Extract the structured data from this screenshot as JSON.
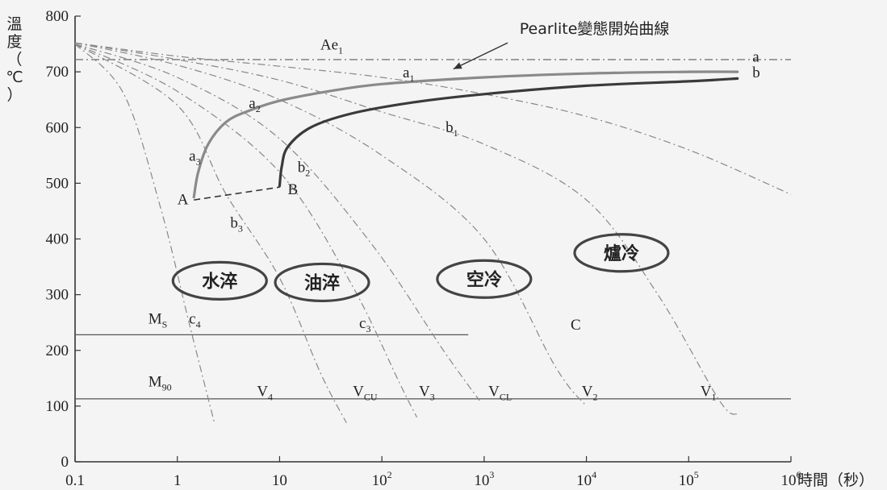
{
  "chart_data": {
    "type": "line",
    "xlabel": "時間（秒）",
    "ylabel_chars": [
      "溫",
      "度",
      "（",
      "℃",
      "）"
    ],
    "x_scale": "log",
    "xlim": [
      0.1,
      1000000
    ],
    "ylim": [
      0,
      800
    ],
    "x_ticks": [
      {
        "v": 0.1,
        "base": "0.1",
        "exp": ""
      },
      {
        "v": 1,
        "base": "1",
        "exp": ""
      },
      {
        "v": 10,
        "base": "10",
        "exp": ""
      },
      {
        "v": 100,
        "base": "10",
        "exp": "2"
      },
      {
        "v": 1000,
        "base": "10",
        "exp": "3"
      },
      {
        "v": 10000,
        "base": "10",
        "exp": "4"
      },
      {
        "v": 100000,
        "base": "10",
        "exp": "5"
      },
      {
        "v": 1000000,
        "base": "10",
        "exp": "6"
      }
    ],
    "y_ticks": [
      0,
      100,
      200,
      300,
      400,
      500,
      600,
      700,
      800
    ],
    "reference_lines": [
      {
        "name": "Ae1",
        "main": "Ae",
        "subscript": "1",
        "y": 722,
        "x_from": 0.1,
        "x_to": 1000000,
        "style": "dashdot",
        "label_x": 25,
        "label_y": 740
      },
      {
        "name": "Ms",
        "main": "M",
        "subscript": "S",
        "y": 228,
        "x_from": 0.1,
        "x_to": 700,
        "style": "solid",
        "label_x": 0.52,
        "label_y": 248
      },
      {
        "name": "M90",
        "main": "M",
        "subscript": "90",
        "y": 113,
        "x_from": 0.1,
        "x_to": 1000000,
        "style": "solid",
        "label_x": 0.52,
        "label_y": 135
      }
    ],
    "transformation_curves": [
      {
        "name": "a",
        "label": "a",
        "color": "#8a8a8a",
        "points": [
          [
            1.45,
            475
          ],
          [
            1.6,
            520
          ],
          [
            2,
            570
          ],
          [
            3,
            610
          ],
          [
            5,
            630
          ],
          [
            10,
            648
          ],
          [
            30,
            665
          ],
          [
            100,
            678
          ],
          [
            1000,
            690
          ],
          [
            10000,
            697
          ],
          [
            100000,
            700
          ],
          [
            300000,
            700
          ]
        ]
      },
      {
        "name": "b",
        "label": "b",
        "color": "#3a3a3a",
        "points": [
          [
            10,
            495
          ],
          [
            10.5,
            530
          ],
          [
            12,
            565
          ],
          [
            20,
            600
          ],
          [
            50,
            625
          ],
          [
            200,
            645
          ],
          [
            1000,
            660
          ],
          [
            10000,
            675
          ],
          [
            100000,
            683
          ],
          [
            300000,
            688
          ]
        ]
      }
    ],
    "segment_AB": {
      "from": [
        1.45,
        470
      ],
      "to": [
        10,
        493
      ],
      "style": "dashed"
    },
    "cooling_curves": [
      {
        "name": "V4",
        "main": "V",
        "subscript": "4",
        "points": [
          [
            0.1,
            750
          ],
          [
            0.3,
            660
          ],
          [
            0.7,
            450
          ],
          [
            1.3,
            250
          ],
          [
            2.3,
            70
          ]
        ],
        "label_x": 6,
        "label_y": 118
      },
      {
        "name": "VCU",
        "main": "V",
        "subscript": "CU",
        "points": [
          [
            0.1,
            750
          ],
          [
            1,
            640
          ],
          [
            3,
            480
          ],
          [
            10,
            330
          ],
          [
            25,
            160
          ],
          [
            45,
            70
          ]
        ],
        "label_x": 52,
        "label_y": 118
      },
      {
        "name": "V3",
        "main": "V",
        "subscript": "3",
        "points": [
          [
            0.1,
            750
          ],
          [
            1,
            665
          ],
          [
            10,
            520
          ],
          [
            50,
            320
          ],
          [
            150,
            140
          ],
          [
            220,
            80
          ]
        ],
        "label_x": 230,
        "label_y": 118
      },
      {
        "name": "VCL",
        "main": "V",
        "subscript": "CL",
        "points": [
          [
            0.1,
            750
          ],
          [
            1,
            690
          ],
          [
            10,
            580
          ],
          [
            80,
            390
          ],
          [
            400,
            200
          ],
          [
            900,
            110
          ]
        ],
        "label_x": 1100,
        "label_y": 118
      },
      {
        "name": "V2",
        "main": "V",
        "subscript": "2",
        "points": [
          [
            0.1,
            752
          ],
          [
            1,
            712
          ],
          [
            10,
            650
          ],
          [
            100,
            550
          ],
          [
            1000,
            400
          ],
          [
            5000,
            170
          ],
          [
            10000,
            100
          ]
        ],
        "label_x": 9000,
        "label_y": 118
      },
      {
        "name": "V1",
        "main": "V",
        "subscript": "1",
        "points": [
          [
            0.1,
            752
          ],
          [
            1,
            722
          ],
          [
            10,
            685
          ],
          [
            100,
            628
          ],
          [
            1000,
            570
          ],
          [
            10000,
            470
          ],
          [
            50000,
            300
          ],
          [
            200000,
            110
          ],
          [
            300000,
            85
          ]
        ],
        "label_x": 130000,
        "label_y": 118
      },
      {
        "name": "",
        "main": "",
        "subscript": "",
        "points": [
          [
            0.1,
            752
          ],
          [
            1,
            728
          ],
          [
            10,
            710
          ],
          [
            100,
            690
          ],
          [
            1000,
            660
          ],
          [
            10000,
            620
          ],
          [
            100000,
            560
          ],
          [
            1000000,
            480
          ]
        ],
        "label_x": null,
        "label_y": null
      }
    ],
    "point_labels": [
      {
        "main": "a",
        "subscript": "1",
        "x": 160,
        "y": 690
      },
      {
        "main": "a",
        "subscript": "2",
        "x": 5,
        "y": 635
      },
      {
        "main": "a",
        "subscript": "3",
        "x": 1.3,
        "y": 540
      },
      {
        "main": "b",
        "subscript": "1",
        "x": 420,
        "y": 592
      },
      {
        "main": "b",
        "subscript": "2",
        "x": 15,
        "y": 520
      },
      {
        "main": "b",
        "subscript": "3",
        "x": 3.3,
        "y": 420
      },
      {
        "main": "A",
        "subscript": "",
        "x": 1.0,
        "y": 462
      },
      {
        "main": "B",
        "subscript": "",
        "x": 12,
        "y": 480
      },
      {
        "main": "a",
        "subscript": "",
        "x": 420000,
        "y": 718
      },
      {
        "main": "b",
        "subscript": "",
        "x": 420000,
        "y": 690
      },
      {
        "main": "c",
        "subscript": "4",
        "x": 1.3,
        "y": 248
      },
      {
        "main": "c",
        "subscript": "3",
        "x": 60,
        "y": 240
      },
      {
        "main": "C",
        "subscript": "",
        "x": 7000,
        "y": 237
      }
    ],
    "annotation": {
      "text": "Pearlite變態開始曲線",
      "text_x": 12000,
      "text_y": 768,
      "arrow_from": [
        1700,
        752
      ],
      "arrow_to": [
        500,
        705
      ]
    },
    "zones": [
      {
        "text": "水淬",
        "x": 2.6,
        "y": 325
      },
      {
        "text": "油淬",
        "x": 26,
        "y": 322
      },
      {
        "text": "空冷",
        "x": 1000,
        "y": 328
      },
      {
        "text": "爐冷",
        "x": 22000,
        "y": 375
      }
    ]
  }
}
